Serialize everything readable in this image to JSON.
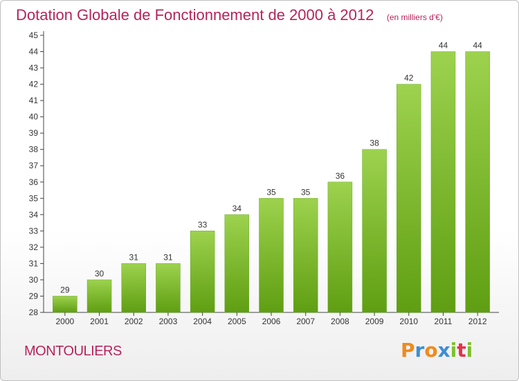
{
  "chart_data": {
    "type": "bar",
    "title": "Dotation Globale de Fonctionnement de 2000 à 2012",
    "subtitle": "(en milliers d'€)",
    "categories": [
      "2000",
      "2001",
      "2002",
      "2003",
      "2004",
      "2005",
      "2006",
      "2007",
      "2008",
      "2009",
      "2010",
      "2011",
      "2012"
    ],
    "values": [
      29,
      30,
      31,
      31,
      33,
      34,
      35,
      35,
      36,
      38,
      42,
      44,
      44
    ],
    "ylim": [
      28,
      45
    ],
    "yticks": [
      28,
      29,
      30,
      31,
      32,
      33,
      34,
      35,
      36,
      37,
      38,
      39,
      40,
      41,
      42,
      43,
      44,
      45
    ],
    "grid": false,
    "bar_color_top": "#9dd24e",
    "bar_color_bottom": "#5f9e12"
  },
  "footer": {
    "commune": "MONTOULIERS",
    "logo_letters": [
      "P",
      "r",
      "o",
      "x",
      "i",
      "t",
      "i"
    ],
    "logo_colors": [
      "#f08a1c",
      "#3d8ed4",
      "#f08a1c",
      "#3d8ed4",
      "#7cc22b",
      "#e4334b",
      "#7cc22b"
    ]
  }
}
